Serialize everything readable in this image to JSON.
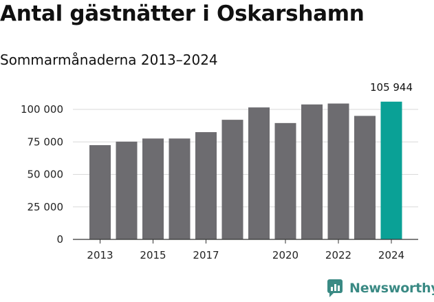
{
  "title": "Antal gästnätter i Oskarshamn",
  "subtitle": "Sommarmånaderna 2013–2024",
  "brand": "Newsworthy",
  "colors": {
    "bar": "#6d6c70",
    "highlight": "#0aa196",
    "grid": "#d9d9d9",
    "brand": "#3a8a84"
  },
  "chart_data": {
    "type": "bar",
    "categories": [
      "2013",
      "2014",
      "2015",
      "2016",
      "2017",
      "2018",
      "2019",
      "2020",
      "2021",
      "2022",
      "2023",
      "2024"
    ],
    "values": [
      72500,
      75200,
      77600,
      77600,
      82500,
      92000,
      101500,
      89500,
      103800,
      104500,
      95000,
      105944
    ],
    "x_tick_labels": [
      "2013",
      "",
      "2015",
      "",
      "2017",
      "",
      "",
      "2020",
      "",
      "2022",
      "",
      "2024"
    ],
    "y_ticks": [
      0,
      25000,
      50000,
      75000,
      100000
    ],
    "y_tick_labels": [
      "0",
      "25 000",
      "50 000",
      "75 000",
      "100 000"
    ],
    "ylim": [
      0,
      110000
    ],
    "highlight_index": 11,
    "highlight_label": "105 944",
    "grid": true,
    "xlabel": "",
    "ylabel": ""
  }
}
